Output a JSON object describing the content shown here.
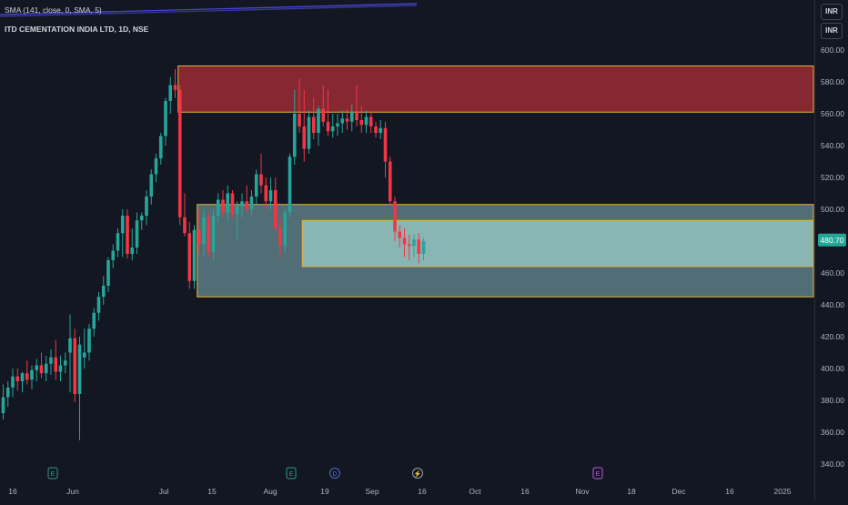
{
  "indicator": {
    "label": "SMA (141, close, 0, SMA, 5)"
  },
  "header": {
    "symbol_title": "ITD CEMENTATION INDIA LTD, 1D, NSE"
  },
  "currency": [
    "INR",
    "INR"
  ],
  "last_price_label": "480.70",
  "colors": {
    "background": "#131722",
    "up": "#26a69a",
    "down": "#f23645",
    "supply_zone": "#9c2a35",
    "demand_zone_outer": "#5d7d84",
    "demand_zone_inner": "#8fbcba",
    "zone_border": "#e8b23a",
    "sma_line": "#4b4ae0"
  },
  "chart_data": {
    "type": "candlestick",
    "title": "ITD CEMENTATION INDIA LTD, 1D, NSE",
    "ylim": [
      335,
      610
    ],
    "y_ticks": [
      "340.00",
      "360.00",
      "380.00",
      "400.00",
      "420.00",
      "440.00",
      "460.00",
      "480.00",
      "500.00",
      "520.00",
      "540.00",
      "560.00",
      "580.00",
      "600.00"
    ],
    "x_ticks": [
      "16",
      "Jun",
      "Jul",
      "15",
      "Aug",
      "19",
      "Sep",
      "16",
      "Oct",
      "16",
      "Nov",
      "18",
      "Dec",
      "16",
      "2025"
    ],
    "event_markers": [
      {
        "kind": "earnings",
        "letter": "E",
        "date": "Jun 5"
      },
      {
        "kind": "earnings",
        "letter": "E",
        "date": "Aug 13"
      },
      {
        "kind": "dividend",
        "letter": "D",
        "date": "Aug 20"
      },
      {
        "kind": "split",
        "letter": "⚡",
        "date": "Sep 16"
      },
      {
        "kind": "earnings",
        "letter": "E",
        "date": "Nov 10"
      }
    ],
    "candles": [
      {
        "o": 372,
        "h": 390,
        "l": 368,
        "c": 382
      },
      {
        "o": 382,
        "h": 392,
        "l": 376,
        "c": 388
      },
      {
        "o": 388,
        "h": 400,
        "l": 382,
        "c": 395
      },
      {
        "o": 395,
        "h": 400,
        "l": 386,
        "c": 392
      },
      {
        "o": 392,
        "h": 398,
        "l": 385,
        "c": 397
      },
      {
        "o": 397,
        "h": 405,
        "l": 390,
        "c": 393
      },
      {
        "o": 393,
        "h": 402,
        "l": 387,
        "c": 399
      },
      {
        "o": 399,
        "h": 406,
        "l": 392,
        "c": 402
      },
      {
        "o": 402,
        "h": 410,
        "l": 394,
        "c": 397
      },
      {
        "o": 397,
        "h": 408,
        "l": 392,
        "c": 403
      },
      {
        "o": 403,
        "h": 412,
        "l": 396,
        "c": 407
      },
      {
        "o": 407,
        "h": 418,
        "l": 393,
        "c": 398
      },
      {
        "o": 398,
        "h": 408,
        "l": 392,
        "c": 402
      },
      {
        "o": 402,
        "h": 410,
        "l": 397,
        "c": 405
      },
      {
        "o": 410,
        "h": 434,
        "l": 385,
        "c": 419
      },
      {
        "o": 419,
        "h": 425,
        "l": 379,
        "c": 384
      },
      {
        "o": 384,
        "h": 420,
        "l": 355,
        "c": 415
      },
      {
        "o": 407,
        "h": 425,
        "l": 400,
        "c": 410
      },
      {
        "o": 410,
        "h": 428,
        "l": 405,
        "c": 425
      },
      {
        "o": 425,
        "h": 438,
        "l": 420,
        "c": 435
      },
      {
        "o": 435,
        "h": 448,
        "l": 430,
        "c": 445
      },
      {
        "o": 445,
        "h": 458,
        "l": 440,
        "c": 452
      },
      {
        "o": 452,
        "h": 470,
        "l": 448,
        "c": 468
      },
      {
        "o": 468,
        "h": 478,
        "l": 463,
        "c": 474
      },
      {
        "o": 474,
        "h": 488,
        "l": 470,
        "c": 485
      },
      {
        "o": 485,
        "h": 500,
        "l": 470,
        "c": 496
      },
      {
        "o": 496,
        "h": 500,
        "l": 469,
        "c": 472
      },
      {
        "o": 472,
        "h": 488,
        "l": 468,
        "c": 476
      },
      {
        "o": 476,
        "h": 498,
        "l": 472,
        "c": 493
      },
      {
        "o": 493,
        "h": 498,
        "l": 487,
        "c": 496
      },
      {
        "o": 496,
        "h": 512,
        "l": 490,
        "c": 508
      },
      {
        "o": 508,
        "h": 525,
        "l": 503,
        "c": 522
      },
      {
        "o": 522,
        "h": 535,
        "l": 517,
        "c": 532
      },
      {
        "o": 532,
        "h": 548,
        "l": 528,
        "c": 546
      },
      {
        "o": 546,
        "h": 570,
        "l": 540,
        "c": 568
      },
      {
        "o": 568,
        "h": 583,
        "l": 560,
        "c": 578
      },
      {
        "o": 578,
        "h": 588,
        "l": 570,
        "c": 575
      },
      {
        "o": 575,
        "h": 578,
        "l": 490,
        "c": 495
      },
      {
        "o": 495,
        "h": 510,
        "l": 483,
        "c": 485
      },
      {
        "o": 485,
        "h": 492,
        "l": 450,
        "c": 455
      },
      {
        "o": 455,
        "h": 490,
        "l": 450,
        "c": 487
      },
      {
        "o": 487,
        "h": 500,
        "l": 472,
        "c": 478
      },
      {
        "o": 478,
        "h": 500,
        "l": 470,
        "c": 495
      },
      {
        "o": 495,
        "h": 498,
        "l": 470,
        "c": 473
      },
      {
        "o": 473,
        "h": 500,
        "l": 468,
        "c": 496
      },
      {
        "o": 496,
        "h": 510,
        "l": 492,
        "c": 506
      },
      {
        "o": 506,
        "h": 512,
        "l": 495,
        "c": 498
      },
      {
        "o": 498,
        "h": 515,
        "l": 492,
        "c": 510
      },
      {
        "o": 510,
        "h": 512,
        "l": 495,
        "c": 497
      },
      {
        "o": 497,
        "h": 505,
        "l": 480,
        "c": 502
      },
      {
        "o": 502,
        "h": 510,
        "l": 495,
        "c": 505
      },
      {
        "o": 505,
        "h": 515,
        "l": 498,
        "c": 500
      },
      {
        "o": 500,
        "h": 512,
        "l": 496,
        "c": 508
      },
      {
        "o": 508,
        "h": 525,
        "l": 503,
        "c": 522
      },
      {
        "o": 522,
        "h": 535,
        "l": 510,
        "c": 515
      },
      {
        "o": 515,
        "h": 520,
        "l": 500,
        "c": 505
      },
      {
        "o": 505,
        "h": 520,
        "l": 500,
        "c": 512
      },
      {
        "o": 512,
        "h": 520,
        "l": 485,
        "c": 488
      },
      {
        "o": 488,
        "h": 495,
        "l": 470,
        "c": 477
      },
      {
        "o": 477,
        "h": 500,
        "l": 472,
        "c": 498
      },
      {
        "o": 498,
        "h": 535,
        "l": 495,
        "c": 533
      },
      {
        "o": 533,
        "h": 575,
        "l": 528,
        "c": 560
      },
      {
        "o": 560,
        "h": 582,
        "l": 548,
        "c": 552
      },
      {
        "o": 552,
        "h": 575,
        "l": 530,
        "c": 538
      },
      {
        "o": 538,
        "h": 562,
        "l": 535,
        "c": 558
      },
      {
        "o": 558,
        "h": 570,
        "l": 544,
        "c": 548
      },
      {
        "o": 548,
        "h": 565,
        "l": 540,
        "c": 563
      },
      {
        "o": 563,
        "h": 578,
        "l": 552,
        "c": 555
      },
      {
        "o": 555,
        "h": 575,
        "l": 546,
        "c": 549
      },
      {
        "o": 549,
        "h": 560,
        "l": 545,
        "c": 552
      },
      {
        "o": 552,
        "h": 560,
        "l": 546,
        "c": 554
      },
      {
        "o": 554,
        "h": 562,
        "l": 548,
        "c": 557
      },
      {
        "o": 557,
        "h": 563,
        "l": 550,
        "c": 555
      },
      {
        "o": 555,
        "h": 566,
        "l": 549,
        "c": 561
      },
      {
        "o": 561,
        "h": 578,
        "l": 552,
        "c": 556
      },
      {
        "o": 556,
        "h": 565,
        "l": 548,
        "c": 553
      },
      {
        "o": 553,
        "h": 562,
        "l": 548,
        "c": 558
      },
      {
        "o": 558,
        "h": 562,
        "l": 548,
        "c": 552
      },
      {
        "o": 552,
        "h": 555,
        "l": 545,
        "c": 548
      },
      {
        "o": 548,
        "h": 556,
        "l": 544,
        "c": 551
      },
      {
        "o": 551,
        "h": 555,
        "l": 520,
        "c": 530
      },
      {
        "o": 530,
        "h": 533,
        "l": 502,
        "c": 505
      },
      {
        "o": 505,
        "h": 508,
        "l": 480,
        "c": 486
      },
      {
        "o": 486,
        "h": 490,
        "l": 476,
        "c": 482
      },
      {
        "o": 482,
        "h": 488,
        "l": 470,
        "c": 478
      },
      {
        "o": 478,
        "h": 484,
        "l": 468,
        "c": 477
      },
      {
        "o": 477,
        "h": 484,
        "l": 470,
        "c": 481
      },
      {
        "o": 481,
        "h": 485,
        "l": 466,
        "c": 472
      },
      {
        "o": 472,
        "h": 482,
        "l": 468,
        "c": 480
      }
    ],
    "zones": [
      {
        "name": "supply",
        "from_index": 37,
        "top": 590,
        "bottom": 561,
        "extends_right": true
      },
      {
        "name": "demand-outer",
        "from_index": 41,
        "top": 503,
        "bottom": 445,
        "extends_right": true
      },
      {
        "name": "demand-inner",
        "from_index": 63,
        "top": 493,
        "bottom": 464,
        "extends_right": true
      }
    ],
    "last_price": 480.7,
    "grid": false
  }
}
